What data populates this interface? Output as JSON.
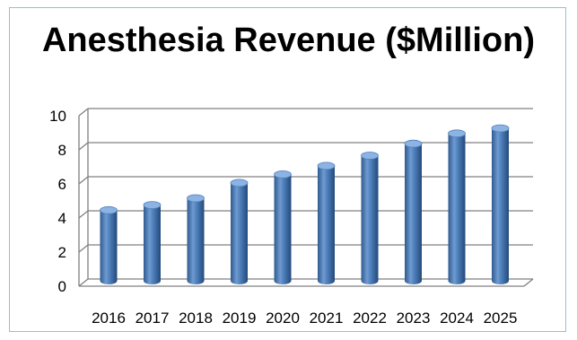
{
  "chart_data": {
    "type": "bar",
    "title": "Anesthesia Revenue ($Million)",
    "xlabel": "",
    "ylabel": "",
    "categories": [
      "2016",
      "2017",
      "2018",
      "2019",
      "2020",
      "2021",
      "2022",
      "2023",
      "2024",
      "2025"
    ],
    "values": [
      4.3,
      4.6,
      5.0,
      5.9,
      6.4,
      6.9,
      7.5,
      8.2,
      8.8,
      9.1
    ],
    "ylim": [
      0,
      10
    ],
    "yticks": [
      0,
      2,
      4,
      6,
      8,
      10
    ],
    "grid": true,
    "legend": "none",
    "style": "3d-cylinder",
    "colors": {
      "bar": "#4f81bd",
      "bar_dark": "#2f5a8f",
      "bar_light": "#8db3e2",
      "grid": "#808080",
      "frame": "#8fc3d2"
    }
  }
}
